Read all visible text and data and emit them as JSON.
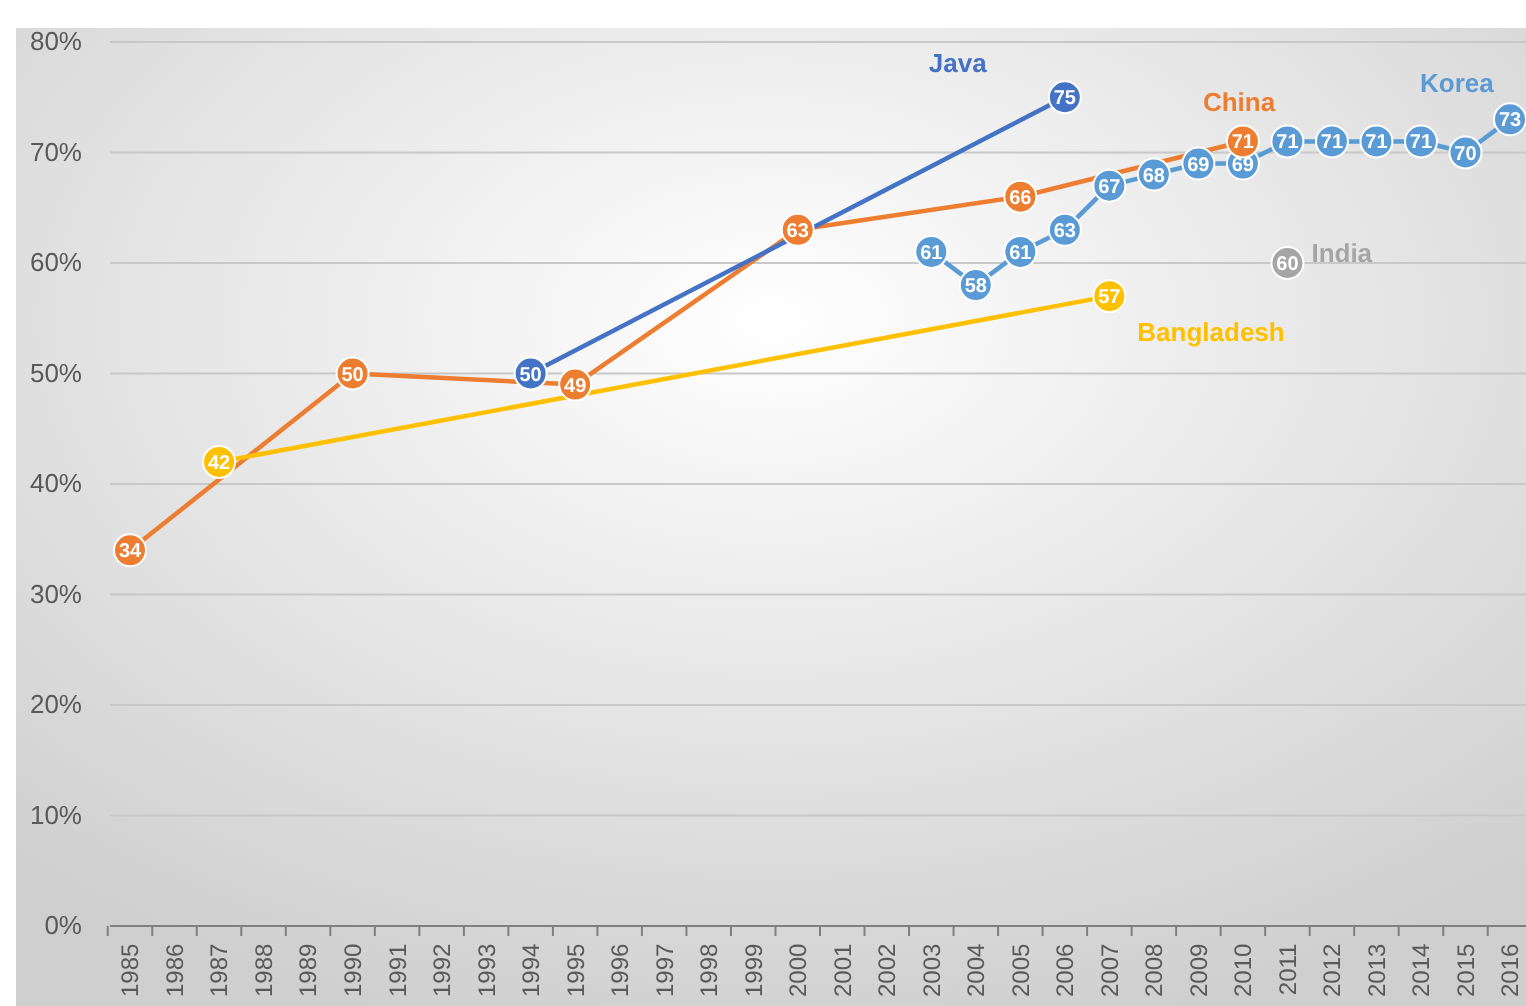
{
  "chart_data": {
    "type": "line",
    "categories": [
      "1985",
      "1986",
      "1987",
      "1988",
      "1989",
      "1990",
      "1991",
      "1992",
      "1993",
      "1994",
      "1995",
      "1996",
      "1997",
      "1998",
      "1999",
      "2000",
      "2001",
      "2002",
      "2003",
      "2004",
      "2005",
      "2006",
      "2007",
      "2008",
      "2009",
      "2010",
      "2011",
      "2012",
      "2013",
      "2014",
      "2015",
      "2016"
    ],
    "series": [
      {
        "name": "China",
        "color": "#ed7d31",
        "values": [
          34,
          null,
          null,
          null,
          null,
          50,
          null,
          null,
          null,
          null,
          49,
          null,
          null,
          null,
          null,
          63,
          null,
          null,
          null,
          null,
          66,
          null,
          null,
          null,
          null,
          71,
          null,
          null,
          null,
          null,
          null,
          null
        ]
      },
      {
        "name": "Bangladesh",
        "color": "#ffc000",
        "values": [
          null,
          null,
          42,
          null,
          null,
          null,
          null,
          null,
          null,
          null,
          null,
          null,
          null,
          null,
          null,
          null,
          null,
          null,
          null,
          null,
          null,
          null,
          57,
          null,
          null,
          null,
          null,
          null,
          null,
          null,
          null,
          null
        ]
      },
      {
        "name": "Java",
        "color": "#4472c4",
        "values": [
          null,
          null,
          null,
          null,
          null,
          null,
          null,
          null,
          null,
          50,
          null,
          null,
          null,
          null,
          null,
          null,
          null,
          null,
          null,
          null,
          null,
          75,
          null,
          null,
          null,
          null,
          null,
          null,
          null,
          null,
          null,
          null
        ]
      },
      {
        "name": "Korea",
        "color": "#5b9bd5",
        "values": [
          null,
          null,
          null,
          null,
          null,
          null,
          null,
          null,
          null,
          null,
          null,
          null,
          null,
          null,
          null,
          null,
          null,
          null,
          61,
          58,
          61,
          63,
          67,
          68,
          69,
          69,
          71,
          71,
          71,
          71,
          70,
          73
        ]
      },
      {
        "name": "India",
        "color": "#a5a5a5",
        "values": [
          null,
          null,
          null,
          null,
          null,
          null,
          null,
          null,
          null,
          null,
          null,
          null,
          null,
          null,
          null,
          null,
          null,
          null,
          null,
          null,
          null,
          null,
          null,
          null,
          null,
          null,
          60,
          null,
          null,
          null,
          null,
          null
        ]
      }
    ],
    "ylim": [
      0,
      80
    ],
    "yticks": [
      {
        "value": 0,
        "label": "0%"
      },
      {
        "value": 10,
        "label": "10%"
      },
      {
        "value": 20,
        "label": "20%"
      },
      {
        "value": 30,
        "label": "30%"
      },
      {
        "value": 40,
        "label": "40%"
      },
      {
        "value": 50,
        "label": "50%"
      },
      {
        "value": 60,
        "label": "60%"
      },
      {
        "value": 70,
        "label": "70%"
      },
      {
        "value": 80,
        "label": "80%"
      }
    ],
    "grid": "y",
    "marker": "circle",
    "line_style": "solid",
    "data_labels": true
  }
}
